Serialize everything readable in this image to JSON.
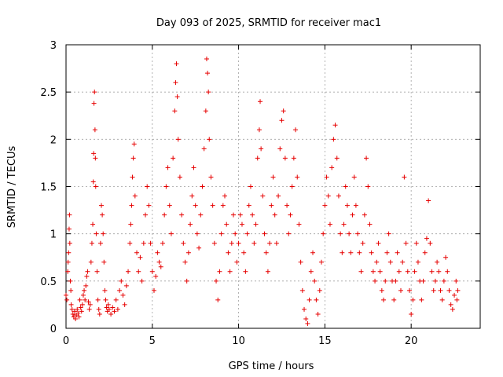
{
  "chart_data": {
    "type": "scatter",
    "title": "Day 093 of 2025, SRMTID for receiver mac1",
    "xlabel": "GPS time / hours",
    "ylabel": "SRMTID / TECUs",
    "xlim": [
      0,
      24
    ],
    "ylim": [
      0,
      3
    ],
    "xticks": [
      0,
      5,
      10,
      15,
      20
    ],
    "yticks": [
      0,
      0.5,
      1,
      1.5,
      2,
      2.5,
      3
    ],
    "xtick_labels": [
      "0",
      "5",
      "10",
      "15",
      "20"
    ],
    "ytick_labels": [
      "0",
      "0.5",
      "1",
      "1.5",
      "2",
      "2.5",
      "3"
    ],
    "grid": true,
    "marker": "plus",
    "series": [
      {
        "name": "SRMTID",
        "color": "#e60000",
        "points": [
          [
            0.0,
            0.35
          ],
          [
            0.05,
            0.3
          ],
          [
            0.1,
            0.6
          ],
          [
            0.12,
            0.7
          ],
          [
            0.15,
            0.8
          ],
          [
            0.18,
            1.05
          ],
          [
            0.2,
            1.2
          ],
          [
            0.22,
            0.9
          ],
          [
            0.25,
            0.5
          ],
          [
            0.28,
            0.4
          ],
          [
            0.3,
            0.25
          ],
          [
            0.35,
            0.2
          ],
          [
            0.4,
            0.15
          ],
          [
            0.45,
            0.12
          ],
          [
            0.5,
            0.18
          ],
          [
            0.55,
            0.1
          ],
          [
            0.6,
            0.14
          ],
          [
            0.65,
            0.2
          ],
          [
            0.7,
            0.16
          ],
          [
            0.75,
            0.12
          ],
          [
            0.8,
            0.3
          ],
          [
            0.85,
            0.22
          ],
          [
            0.9,
            0.18
          ],
          [
            0.95,
            0.25
          ],
          [
            1.0,
            0.35
          ],
          [
            1.05,
            0.4
          ],
          [
            1.1,
            0.3
          ],
          [
            1.15,
            0.45
          ],
          [
            1.2,
            0.55
          ],
          [
            1.25,
            0.6
          ],
          [
            1.3,
            0.28
          ],
          [
            1.35,
            0.2
          ],
          [
            1.4,
            0.25
          ],
          [
            1.45,
            0.7
          ],
          [
            1.5,
            0.9
          ],
          [
            1.55,
            1.1
          ],
          [
            1.58,
            1.55
          ],
          [
            1.6,
            1.85
          ],
          [
            1.62,
            2.38
          ],
          [
            1.65,
            2.5
          ],
          [
            1.68,
            2.1
          ],
          [
            1.7,
            1.8
          ],
          [
            1.72,
            1.5
          ],
          [
            1.75,
            1.0
          ],
          [
            1.8,
            0.6
          ],
          [
            1.85,
            0.3
          ],
          [
            1.9,
            0.2
          ],
          [
            1.95,
            0.15
          ],
          [
            2.0,
            0.9
          ],
          [
            2.05,
            1.3
          ],
          [
            2.1,
            1.2
          ],
          [
            2.15,
            1.0
          ],
          [
            2.2,
            0.7
          ],
          [
            2.25,
            0.4
          ],
          [
            2.3,
            0.3
          ],
          [
            2.35,
            0.22
          ],
          [
            2.4,
            0.18
          ],
          [
            2.45,
            0.25
          ],
          [
            2.5,
            0.2
          ],
          [
            2.6,
            0.15
          ],
          [
            2.7,
            0.22
          ],
          [
            2.8,
            0.18
          ],
          [
            2.9,
            0.3
          ],
          [
            3.0,
            0.2
          ],
          [
            3.1,
            0.4
          ],
          [
            3.2,
            0.5
          ],
          [
            3.3,
            0.35
          ],
          [
            3.4,
            0.25
          ],
          [
            3.5,
            0.45
          ],
          [
            3.6,
            0.6
          ],
          [
            3.7,
            0.9
          ],
          [
            3.75,
            1.1
          ],
          [
            3.8,
            1.3
          ],
          [
            3.85,
            1.6
          ],
          [
            3.9,
            1.8
          ],
          [
            3.95,
            1.95
          ],
          [
            4.0,
            1.4
          ],
          [
            4.1,
            0.8
          ],
          [
            4.2,
            0.6
          ],
          [
            4.3,
            0.75
          ],
          [
            4.4,
            0.5
          ],
          [
            4.5,
            0.9
          ],
          [
            4.6,
            1.2
          ],
          [
            4.7,
            1.5
          ],
          [
            4.8,
            1.3
          ],
          [
            4.9,
            0.9
          ],
          [
            5.0,
            0.6
          ],
          [
            5.1,
            0.4
          ],
          [
            5.2,
            0.55
          ],
          [
            5.3,
            0.8
          ],
          [
            5.4,
            0.7
          ],
          [
            5.5,
            0.65
          ],
          [
            5.6,
            0.9
          ],
          [
            5.7,
            1.2
          ],
          [
            5.8,
            1.5
          ],
          [
            5.9,
            1.7
          ],
          [
            6.0,
            1.3
          ],
          [
            6.1,
            1.0
          ],
          [
            6.2,
            1.8
          ],
          [
            6.3,
            2.3
          ],
          [
            6.35,
            2.6
          ],
          [
            6.4,
            2.8
          ],
          [
            6.45,
            2.45
          ],
          [
            6.5,
            2.0
          ],
          [
            6.6,
            1.6
          ],
          [
            6.7,
            1.2
          ],
          [
            6.8,
            0.9
          ],
          [
            6.9,
            0.7
          ],
          [
            7.0,
            0.5
          ],
          [
            7.1,
            0.8
          ],
          [
            7.2,
            1.1
          ],
          [
            7.3,
            1.4
          ],
          [
            7.4,
            1.7
          ],
          [
            7.5,
            1.3
          ],
          [
            7.6,
            1.0
          ],
          [
            7.7,
            0.85
          ],
          [
            7.8,
            1.2
          ],
          [
            7.9,
            1.5
          ],
          [
            8.0,
            1.9
          ],
          [
            8.1,
            2.3
          ],
          [
            8.15,
            2.85
          ],
          [
            8.2,
            2.7
          ],
          [
            8.25,
            2.5
          ],
          [
            8.3,
            2.0
          ],
          [
            8.4,
            1.6
          ],
          [
            8.5,
            1.3
          ],
          [
            8.6,
            0.9
          ],
          [
            8.7,
            0.5
          ],
          [
            8.8,
            0.3
          ],
          [
            8.9,
            0.6
          ],
          [
            9.0,
            1.0
          ],
          [
            9.1,
            1.3
          ],
          [
            9.2,
            1.4
          ],
          [
            9.3,
            1.1
          ],
          [
            9.4,
            0.8
          ],
          [
            9.5,
            0.6
          ],
          [
            9.6,
            0.9
          ],
          [
            9.7,
            1.2
          ],
          [
            9.8,
            1.0
          ],
          [
            9.9,
            0.7
          ],
          [
            10.0,
            0.9
          ],
          [
            10.1,
            1.2
          ],
          [
            10.2,
            1.1
          ],
          [
            10.3,
            0.8
          ],
          [
            10.4,
            0.6
          ],
          [
            10.5,
            1.0
          ],
          [
            10.6,
            1.3
          ],
          [
            10.7,
            1.5
          ],
          [
            10.8,
            1.2
          ],
          [
            10.9,
            0.9
          ],
          [
            11.0,
            1.1
          ],
          [
            11.1,
            1.8
          ],
          [
            11.2,
            2.1
          ],
          [
            11.25,
            2.4
          ],
          [
            11.3,
            1.9
          ],
          [
            11.4,
            1.4
          ],
          [
            11.5,
            1.0
          ],
          [
            11.6,
            0.8
          ],
          [
            11.7,
            0.6
          ],
          [
            11.8,
            0.9
          ],
          [
            11.9,
            1.3
          ],
          [
            12.0,
            1.6
          ],
          [
            12.1,
            1.2
          ],
          [
            12.2,
            0.9
          ],
          [
            12.3,
            1.4
          ],
          [
            12.4,
            1.9
          ],
          [
            12.5,
            2.2
          ],
          [
            12.6,
            2.3
          ],
          [
            12.7,
            1.8
          ],
          [
            12.8,
            1.3
          ],
          [
            12.9,
            1.0
          ],
          [
            13.0,
            1.2
          ],
          [
            13.1,
            1.5
          ],
          [
            13.2,
            1.8
          ],
          [
            13.3,
            2.1
          ],
          [
            13.4,
            1.6
          ],
          [
            13.5,
            1.1
          ],
          [
            13.6,
            0.7
          ],
          [
            13.7,
            0.4
          ],
          [
            13.8,
            0.2
          ],
          [
            13.9,
            0.1
          ],
          [
            14.0,
            0.05
          ],
          [
            14.1,
            0.3
          ],
          [
            14.2,
            0.6
          ],
          [
            14.3,
            0.8
          ],
          [
            14.4,
            0.5
          ],
          [
            14.5,
            0.3
          ],
          [
            14.6,
            0.15
          ],
          [
            14.7,
            0.4
          ],
          [
            14.8,
            0.7
          ],
          [
            14.9,
            1.0
          ],
          [
            15.0,
            1.3
          ],
          [
            15.1,
            1.6
          ],
          [
            15.2,
            1.4
          ],
          [
            15.3,
            1.1
          ],
          [
            15.4,
            1.7
          ],
          [
            15.5,
            2.0
          ],
          [
            15.6,
            2.15
          ],
          [
            15.7,
            1.8
          ],
          [
            15.8,
            1.4
          ],
          [
            15.9,
            1.0
          ],
          [
            16.0,
            0.8
          ],
          [
            16.1,
            1.1
          ],
          [
            16.2,
            1.5
          ],
          [
            16.3,
            1.3
          ],
          [
            16.4,
            1.0
          ],
          [
            16.5,
            0.8
          ],
          [
            16.6,
            1.2
          ],
          [
            16.7,
            1.6
          ],
          [
            16.8,
            1.3
          ],
          [
            16.9,
            1.0
          ],
          [
            17.0,
            0.8
          ],
          [
            17.1,
            0.6
          ],
          [
            17.2,
            0.9
          ],
          [
            17.3,
            1.2
          ],
          [
            17.4,
            1.8
          ],
          [
            17.5,
            1.5
          ],
          [
            17.6,
            1.1
          ],
          [
            17.7,
            0.8
          ],
          [
            17.8,
            0.6
          ],
          [
            17.9,
            0.5
          ],
          [
            18.0,
            0.7
          ],
          [
            18.1,
            0.9
          ],
          [
            18.2,
            0.6
          ],
          [
            18.3,
            0.4
          ],
          [
            18.4,
            0.3
          ],
          [
            18.5,
            0.5
          ],
          [
            18.6,
            0.8
          ],
          [
            18.7,
            1.0
          ],
          [
            18.8,
            0.7
          ],
          [
            18.9,
            0.5
          ],
          [
            19.0,
            0.3
          ],
          [
            19.1,
            0.5
          ],
          [
            19.2,
            0.8
          ],
          [
            19.3,
            0.6
          ],
          [
            19.4,
            0.4
          ],
          [
            19.5,
            0.7
          ],
          [
            19.6,
            1.6
          ],
          [
            19.7,
            0.9
          ],
          [
            19.8,
            0.6
          ],
          [
            19.9,
            0.4
          ],
          [
            20.0,
            0.15
          ],
          [
            20.1,
            0.3
          ],
          [
            20.2,
            0.6
          ],
          [
            20.3,
            0.9
          ],
          [
            20.4,
            0.7
          ],
          [
            20.5,
            0.5
          ],
          [
            20.6,
            0.3
          ],
          [
            20.7,
            0.5
          ],
          [
            20.8,
            0.8
          ],
          [
            20.9,
            0.95
          ],
          [
            21.0,
            1.35
          ],
          [
            21.1,
            0.9
          ],
          [
            21.2,
            0.6
          ],
          [
            21.3,
            0.4
          ],
          [
            21.4,
            0.5
          ],
          [
            21.5,
            0.7
          ],
          [
            21.6,
            0.6
          ],
          [
            21.7,
            0.4
          ],
          [
            21.8,
            0.3
          ],
          [
            21.9,
            0.5
          ],
          [
            22.0,
            0.75
          ],
          [
            22.1,
            0.6
          ],
          [
            22.2,
            0.4
          ],
          [
            22.3,
            0.25
          ],
          [
            22.4,
            0.2
          ],
          [
            22.5,
            0.35
          ],
          [
            22.6,
            0.5
          ],
          [
            22.65,
            0.3
          ],
          [
            22.7,
            0.4
          ]
        ]
      }
    ]
  }
}
